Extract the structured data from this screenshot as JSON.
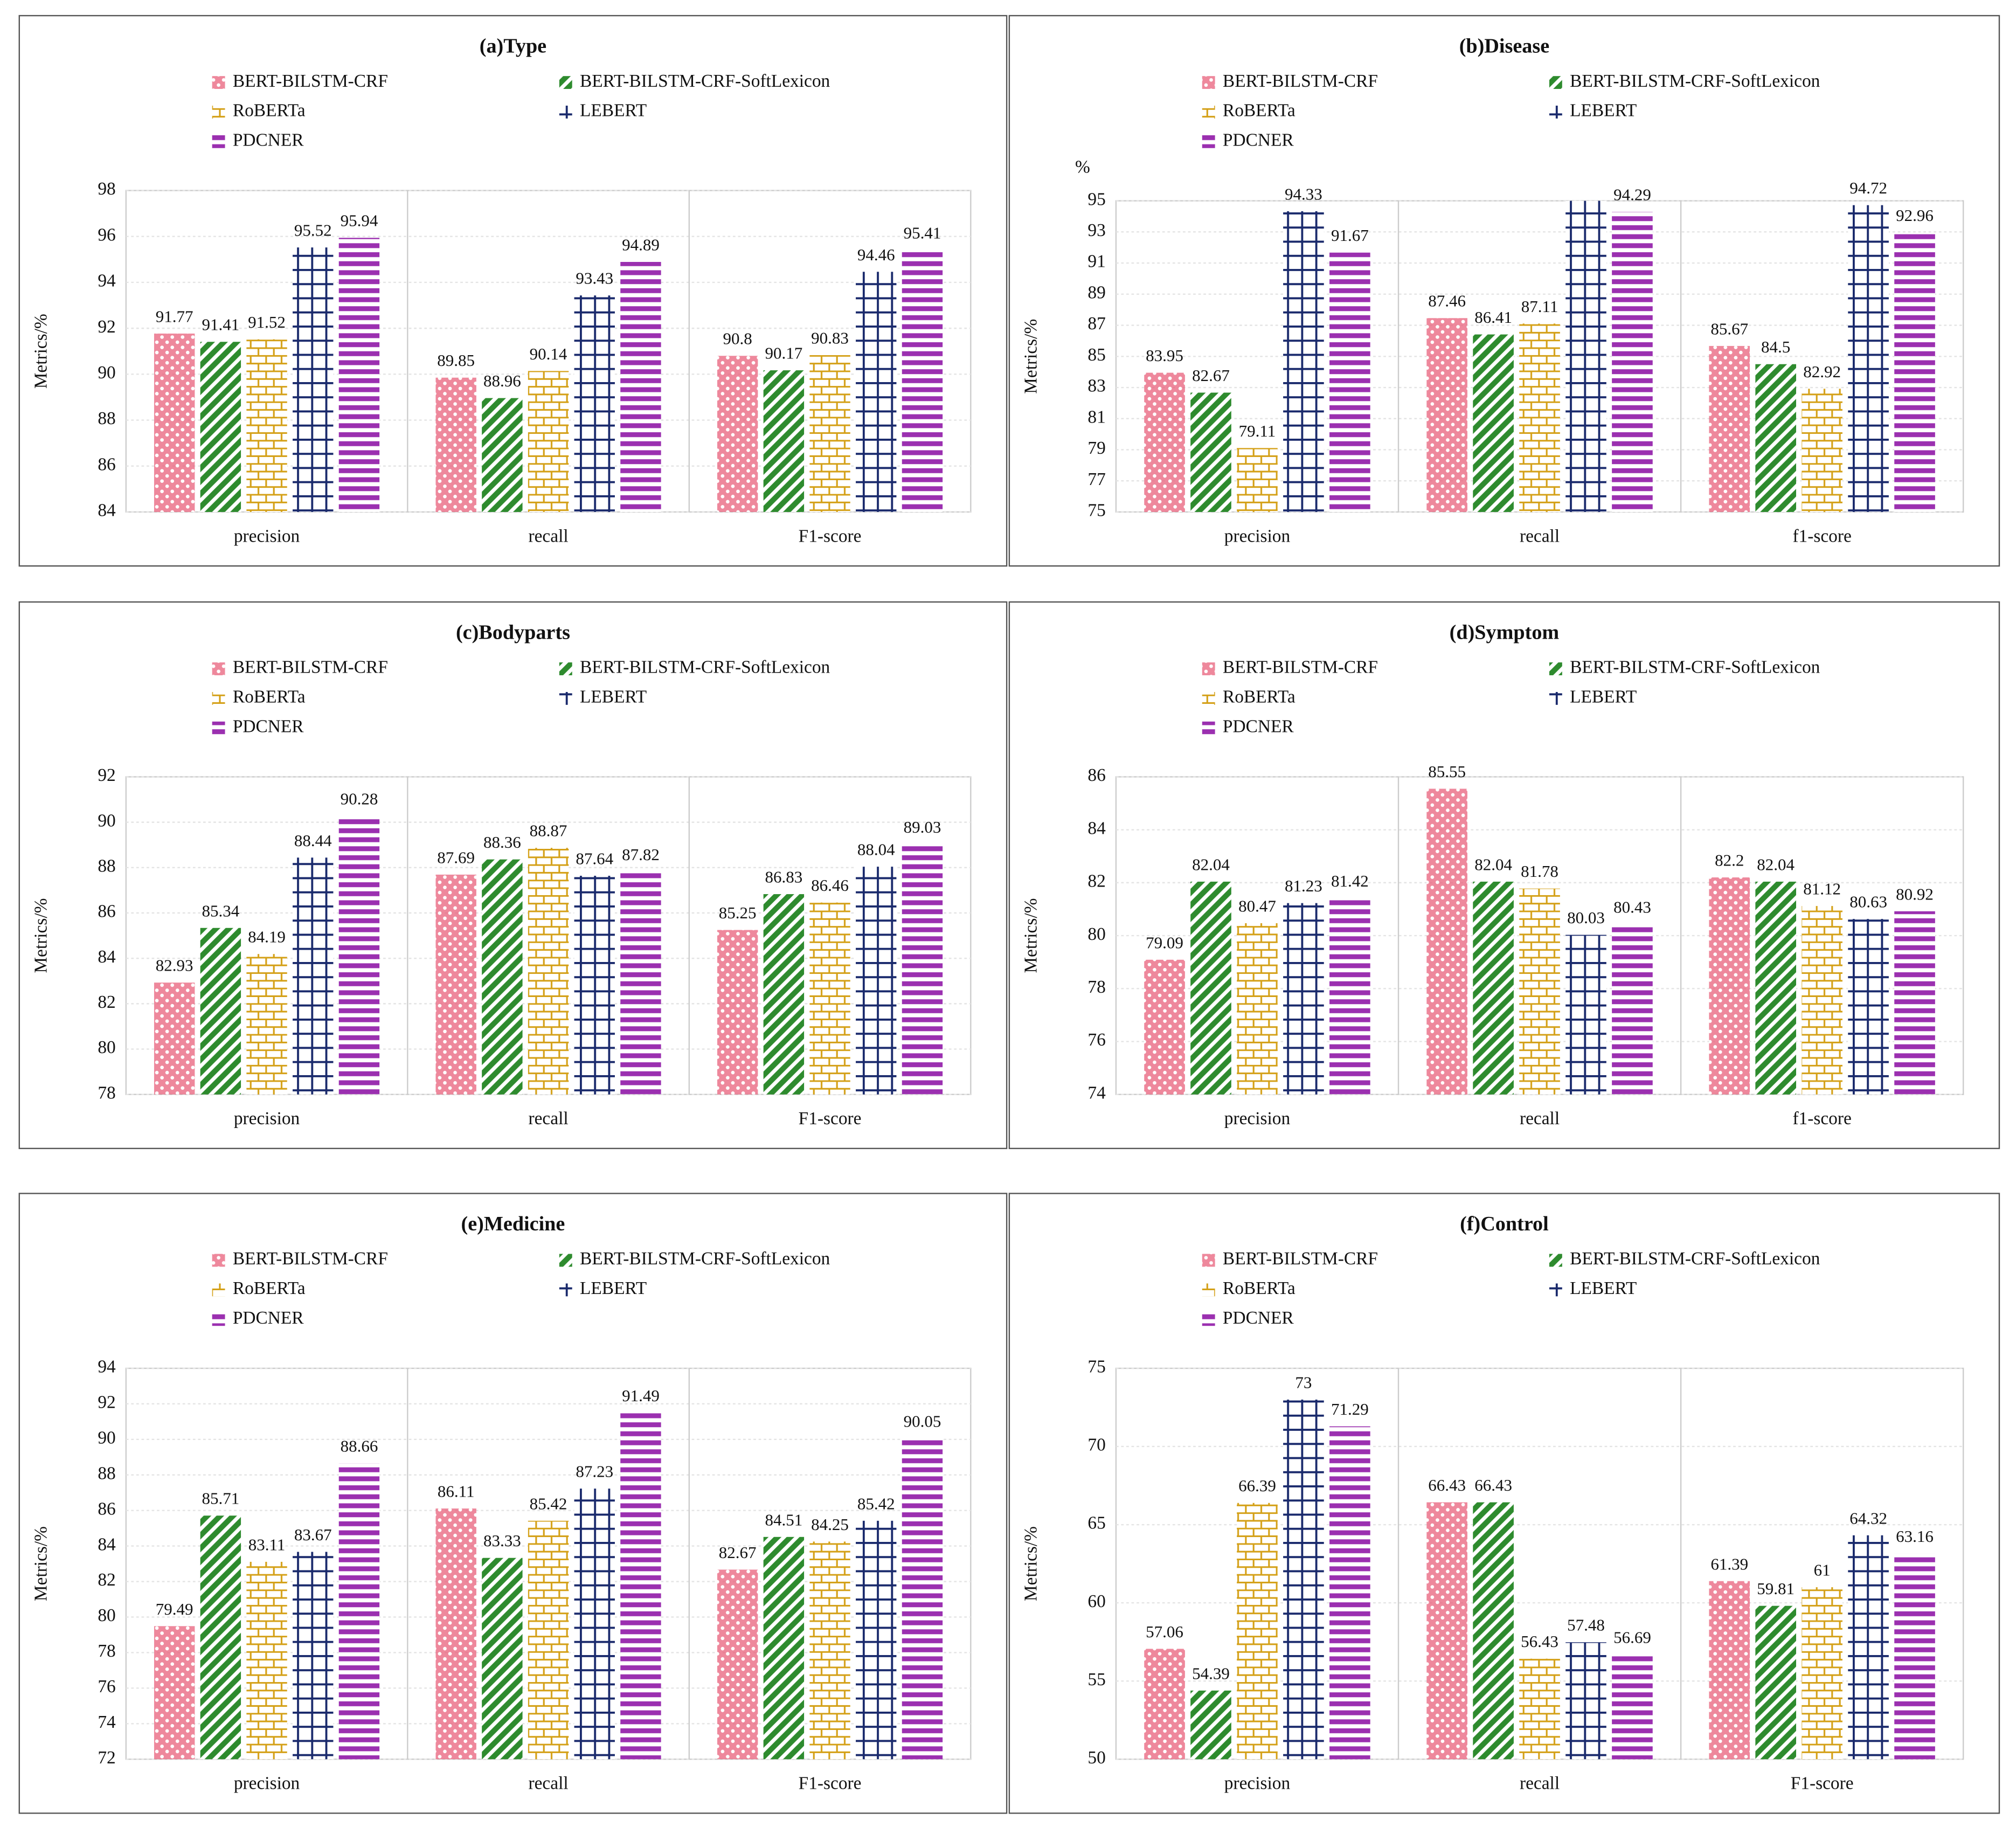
{
  "chart_data": [
    {
      "type": "bar",
      "title": "(a)Type",
      "y_label": "Metrics/%",
      "categories": [
        "precision",
        "recall",
        "F1-score"
      ],
      "series": [
        {
          "name": "BERT-BILSTM-CRF",
          "color": "#e8607a",
          "pattern": "dots",
          "values": [
            91.77,
            89.85,
            90.8
          ]
        },
        {
          "name": "BERT-BILSTM-CRF-SoftLexicon",
          "color": "#2e8b2e",
          "pattern": "diagonal",
          "values": [
            91.41,
            88.96,
            90.17
          ]
        },
        {
          "name": "RoBERTa",
          "color": "#d4a017",
          "pattern": "brick",
          "values": [
            91.52,
            90.14,
            90.83
          ]
        },
        {
          "name": "LEBERT",
          "color": "#1a2a6c",
          "pattern": "grid",
          "values": [
            95.52,
            93.43,
            94.46
          ]
        },
        {
          "name": "PDCNER",
          "color": "#9b30b0",
          "pattern": "stripes",
          "values": [
            95.94,
            94.89,
            95.41
          ]
        }
      ],
      "ylim": [
        84,
        98
      ],
      "yticks": [
        84,
        86,
        88,
        90,
        92,
        94,
        96,
        98
      ],
      "grid": true
    },
    {
      "type": "bar",
      "title": "(b)Disease",
      "y_label": "Metrics/%",
      "unit_label": "%",
      "categories": [
        "precision",
        "recall",
        "f1-score"
      ],
      "series": [
        {
          "name": "BERT-BILSTM-CRF",
          "color": "#e8607a",
          "pattern": "dots",
          "values": [
            83.95,
            87.46,
            85.67
          ]
        },
        {
          "name": "BERT-BILSTM-CRF-SoftLexicon",
          "color": "#2e8b2e",
          "pattern": "diagonal",
          "values": [
            82.67,
            86.41,
            84.5
          ]
        },
        {
          "name": "RoBERTa",
          "color": "#d4a017",
          "pattern": "brick",
          "values": [
            79.11,
            87.11,
            82.92
          ]
        },
        {
          "name": "LEBERT",
          "color": "#1a2a6c",
          "pattern": "grid",
          "values": [
            94.33,
            95,
            94.72
          ],
          "value_labels": [
            "94.33",
            null,
            "94.72"
          ]
        },
        {
          "name": "PDCNER",
          "color": "#9b30b0",
          "pattern": "stripes",
          "values": [
            91.67,
            94.29,
            92.96
          ]
        }
      ],
      "ylim": [
        75,
        95
      ],
      "yticks": [
        75,
        77,
        79,
        81,
        83,
        85,
        87,
        89,
        91,
        93,
        95
      ],
      "grid": true
    },
    {
      "type": "bar",
      "title": "(c)Bodyparts",
      "y_label": "Metrics/%",
      "categories": [
        "precision",
        "recall",
        "F1-score"
      ],
      "series": [
        {
          "name": "BERT-BILSTM-CRF",
          "color": "#e8607a",
          "pattern": "dots",
          "values": [
            82.93,
            87.69,
            85.25
          ]
        },
        {
          "name": "BERT-BILSTM-CRF-SoftLexicon",
          "color": "#2e8b2e",
          "pattern": "diagonal",
          "values": [
            85.34,
            88.36,
            86.83
          ]
        },
        {
          "name": "RoBERTa",
          "color": "#d4a017",
          "pattern": "brick",
          "values": [
            84.19,
            88.87,
            86.46
          ]
        },
        {
          "name": "LEBERT",
          "color": "#1a2a6c",
          "pattern": "grid",
          "values": [
            88.44,
            87.64,
            88.04
          ]
        },
        {
          "name": "PDCNER",
          "color": "#9b30b0",
          "pattern": "stripes",
          "values": [
            90.28,
            87.82,
            89.03
          ]
        }
      ],
      "ylim": [
        78,
        92
      ],
      "yticks": [
        78,
        80,
        82,
        84,
        86,
        88,
        90,
        92
      ],
      "grid": true
    },
    {
      "type": "bar",
      "title": "(d)Symptom",
      "y_label": "Metrics/%",
      "categories": [
        "precision",
        "recall",
        "f1-score"
      ],
      "series": [
        {
          "name": "BERT-BILSTM-CRF",
          "color": "#e8607a",
          "pattern": "dots",
          "values": [
            79.09,
            85.55,
            82.2
          ]
        },
        {
          "name": "BERT-BILSTM-CRF-SoftLexicon",
          "color": "#2e8b2e",
          "pattern": "diagonal",
          "values": [
            82.04,
            82.04,
            82.04
          ]
        },
        {
          "name": "RoBERTa",
          "color": "#d4a017",
          "pattern": "brick",
          "values": [
            80.47,
            81.78,
            81.12
          ]
        },
        {
          "name": "LEBERT",
          "color": "#1a2a6c",
          "pattern": "grid",
          "values": [
            81.23,
            80.03,
            80.63
          ]
        },
        {
          "name": "PDCNER",
          "color": "#9b30b0",
          "pattern": "stripes",
          "values": [
            81.42,
            80.43,
            80.92
          ]
        }
      ],
      "ylim": [
        74,
        86
      ],
      "yticks": [
        74,
        76,
        78,
        80,
        82,
        84,
        86
      ],
      "grid": true
    },
    {
      "type": "bar",
      "title": "(e)Medicine",
      "y_label": "Metrics/%",
      "categories": [
        "precision",
        "recall",
        "F1-score"
      ],
      "series": [
        {
          "name": "BERT-BILSTM-CRF",
          "color": "#e8607a",
          "pattern": "dots",
          "values": [
            79.49,
            86.11,
            82.67
          ]
        },
        {
          "name": "BERT-BILSTM-CRF-SoftLexicon",
          "color": "#2e8b2e",
          "pattern": "diagonal",
          "values": [
            85.71,
            83.33,
            84.51
          ]
        },
        {
          "name": "RoBERTa",
          "color": "#d4a017",
          "pattern": "brick",
          "values": [
            83.11,
            85.42,
            84.25
          ]
        },
        {
          "name": "LEBERT",
          "color": "#1a2a6c",
          "pattern": "grid",
          "values": [
            83.67,
            87.23,
            85.42
          ]
        },
        {
          "name": "PDCNER",
          "color": "#9b30b0",
          "pattern": "stripes",
          "values": [
            88.66,
            91.49,
            90.05
          ]
        }
      ],
      "ylim": [
        72,
        94
      ],
      "yticks": [
        72,
        74,
        76,
        78,
        80,
        82,
        84,
        86,
        88,
        90,
        92,
        94
      ],
      "grid": true
    },
    {
      "type": "bar",
      "title": "(f)Control",
      "y_label": "Metrics/%",
      "categories": [
        "precision",
        "recall",
        "F1-score"
      ],
      "series": [
        {
          "name": "BERT-BILSTM-CRF",
          "color": "#e8607a",
          "pattern": "dots",
          "values": [
            57.06,
            66.43,
            61.39
          ]
        },
        {
          "name": "BERT-BILSTM-CRF-SoftLexicon",
          "color": "#2e8b2e",
          "pattern": "diagonal",
          "values": [
            54.39,
            66.43,
            59.81
          ]
        },
        {
          "name": "RoBERTa",
          "color": "#d4a017",
          "pattern": "brick",
          "values": [
            66.39,
            56.43,
            61
          ]
        },
        {
          "name": "LEBERT",
          "color": "#1a2a6c",
          "pattern": "grid",
          "values": [
            73,
            57.48,
            64.32
          ]
        },
        {
          "name": "PDCNER",
          "color": "#9b30b0",
          "pattern": "stripes",
          "values": [
            71.29,
            56.69,
            63.16
          ]
        }
      ],
      "ylim": [
        50,
        75
      ],
      "yticks": [
        50,
        55,
        60,
        65,
        70,
        75
      ],
      "grid": true
    }
  ]
}
